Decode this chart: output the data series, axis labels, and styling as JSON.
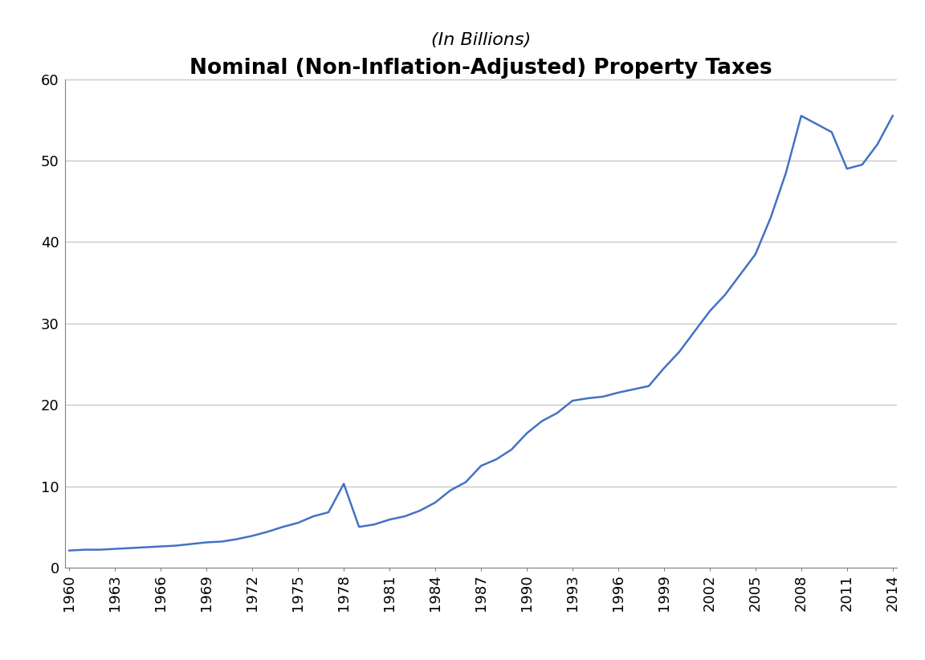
{
  "title": "Nominal (Non-Inflation-Adjusted) Property Taxes",
  "subtitle": "(In Billions)",
  "title_fontsize": 19,
  "subtitle_fontsize": 16,
  "line_color": "#4472C4",
  "line_width": 1.8,
  "background_color": "#ffffff",
  "ylim": [
    0,
    60
  ],
  "yticks": [
    0,
    10,
    20,
    30,
    40,
    50,
    60
  ],
  "years": [
    1960,
    1961,
    1962,
    1963,
    1964,
    1965,
    1966,
    1967,
    1968,
    1969,
    1970,
    1971,
    1972,
    1973,
    1974,
    1975,
    1976,
    1977,
    1978,
    1979,
    1980,
    1981,
    1982,
    1983,
    1984,
    1985,
    1986,
    1987,
    1988,
    1989,
    1990,
    1991,
    1992,
    1993,
    1994,
    1995,
    1996,
    1997,
    1998,
    1999,
    2000,
    2001,
    2002,
    2003,
    2004,
    2005,
    2006,
    2007,
    2008,
    2009,
    2010,
    2011,
    2012,
    2013,
    2014
  ],
  "values": [
    2.1,
    2.2,
    2.2,
    2.3,
    2.4,
    2.5,
    2.6,
    2.7,
    2.9,
    3.1,
    3.2,
    3.5,
    3.9,
    4.4,
    5.0,
    5.5,
    6.3,
    6.8,
    10.3,
    5.0,
    5.3,
    5.9,
    6.3,
    7.0,
    8.0,
    9.5,
    10.5,
    12.5,
    13.3,
    14.5,
    16.5,
    18.0,
    19.0,
    20.5,
    20.8,
    21.0,
    21.5,
    21.9,
    22.3,
    24.5,
    26.5,
    29.0,
    31.5,
    33.5,
    36.0,
    38.5,
    43.0,
    48.5,
    55.5,
    54.5,
    53.5,
    49.0,
    49.5,
    52.0,
    55.5
  ],
  "xtick_years": [
    1960,
    1963,
    1966,
    1969,
    1972,
    1975,
    1978,
    1981,
    1984,
    1987,
    1990,
    1993,
    1996,
    1999,
    2002,
    2005,
    2008,
    2011,
    2014
  ],
  "grid_color": "#bfbfbf",
  "tick_fontsize": 13,
  "spine_color": "#808080"
}
